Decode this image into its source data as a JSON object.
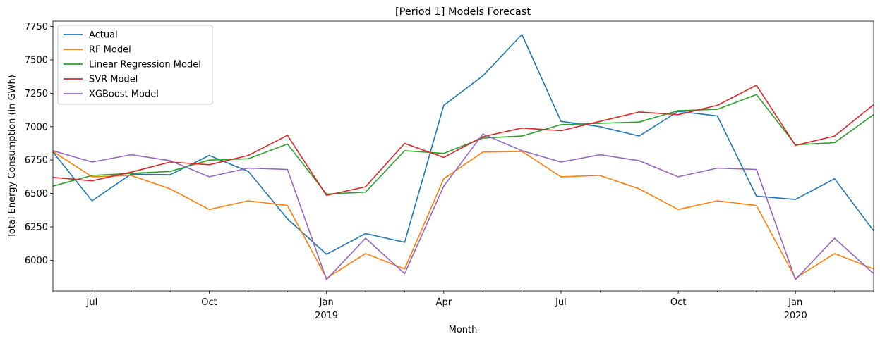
{
  "chart_data": {
    "type": "line",
    "title": "[Period 1] Models Forecast",
    "xlabel": "Month",
    "ylabel": "Total Energy Consumption (in GWh)",
    "x": [
      "2018-06",
      "2018-07",
      "2018-08",
      "2018-09",
      "2018-10",
      "2018-11",
      "2018-12",
      "2019-01",
      "2019-02",
      "2019-03",
      "2019-04",
      "2019-05",
      "2019-06",
      "2019-07",
      "2019-08",
      "2019-09",
      "2019-10",
      "2019-11",
      "2019-12",
      "2020-01",
      "2020-02",
      "2020-03"
    ],
    "x_tick_labels": [
      {
        "date": "2018-07",
        "label": "Jul",
        "sub": ""
      },
      {
        "date": "2018-10",
        "label": "Oct",
        "sub": ""
      },
      {
        "date": "2019-01",
        "label": "Jan",
        "sub": "2019"
      },
      {
        "date": "2019-04",
        "label": "Apr",
        "sub": ""
      },
      {
        "date": "2019-07",
        "label": "Jul",
        "sub": ""
      },
      {
        "date": "2019-10",
        "label": "Oct",
        "sub": ""
      },
      {
        "date": "2020-01",
        "label": "Jan",
        "sub": "2020"
      }
    ],
    "yticks": [
      6000,
      6250,
      6500,
      6750,
      7000,
      7250,
      7500,
      7750
    ],
    "ylim": [
      5770,
      7790
    ],
    "grid": false,
    "legend_position": "top-left",
    "series": [
      {
        "name": "Actual",
        "color": "#1f77b4",
        "values": [
          6810,
          6445,
          6645,
          6640,
          6785,
          6665,
          6310,
          6045,
          6200,
          6135,
          7160,
          7380,
          7690,
          7040,
          7000,
          6930,
          7115,
          7080,
          6480,
          6455,
          6610,
          6220
        ]
      },
      {
        "name": "RF Model",
        "color": "#ff7f0e",
        "values": [
          6815,
          6625,
          6635,
          6535,
          6380,
          6445,
          6410,
          5865,
          6050,
          5935,
          6610,
          6810,
          6815,
          6625,
          6635,
          6535,
          6380,
          6445,
          6410,
          5865,
          6050,
          5935
        ]
      },
      {
        "name": "Linear Regression Model",
        "color": "#2ca02c",
        "values": [
          6555,
          6635,
          6650,
          6665,
          6750,
          6760,
          6870,
          6495,
          6510,
          6820,
          6800,
          6915,
          6930,
          7015,
          7025,
          7035,
          7120,
          7130,
          7240,
          6865,
          6880,
          7090
        ]
      },
      {
        "name": "SVR Model",
        "color": "#d62728",
        "values": [
          6620,
          6595,
          6660,
          6735,
          6715,
          6785,
          6935,
          6485,
          6550,
          6875,
          6770,
          6925,
          6990,
          6970,
          7040,
          7110,
          7090,
          7160,
          7310,
          6860,
          6930,
          7165
        ]
      },
      {
        "name": "XGBoost Model",
        "color": "#9467bd",
        "values": [
          6820,
          6735,
          6790,
          6745,
          6625,
          6690,
          6680,
          5855,
          6165,
          5900,
          6555,
          6945,
          6820,
          6735,
          6790,
          6745,
          6625,
          6690,
          6680,
          5855,
          6165,
          5900
        ]
      }
    ]
  }
}
